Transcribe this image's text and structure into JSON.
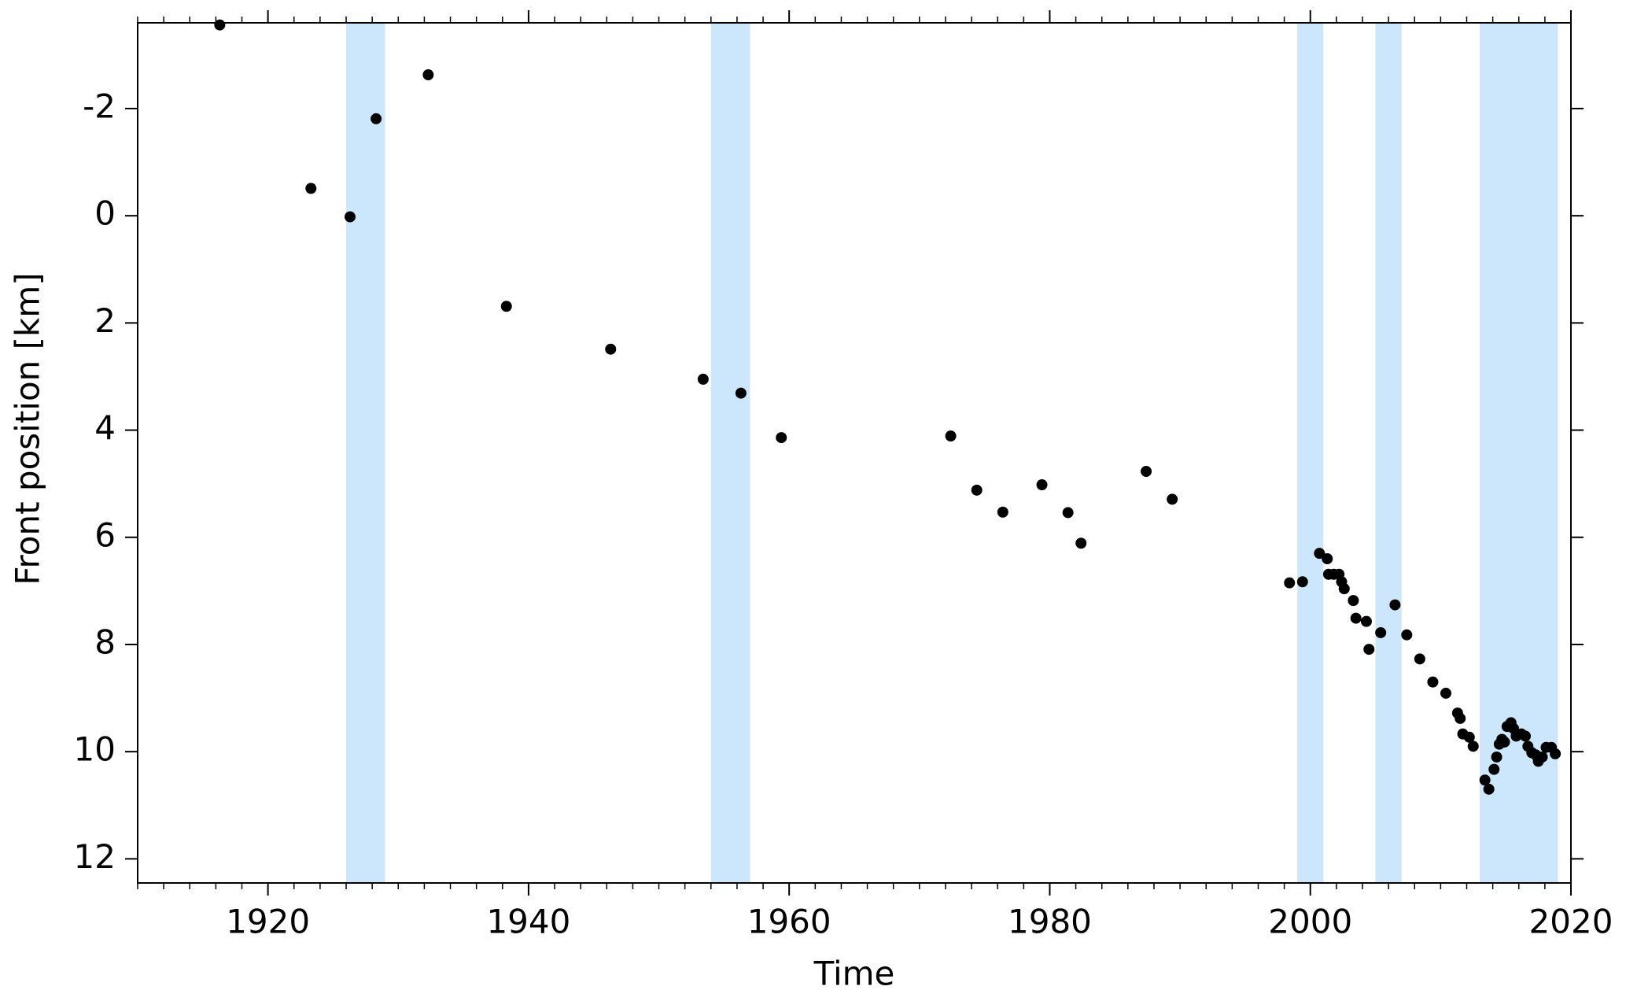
{
  "chart_data": {
    "type": "scatter",
    "xlabel": "Time",
    "ylabel": "Front position  [km]",
    "xlim": [
      1910,
      2020
    ],
    "xticks": [
      1920,
      1940,
      1960,
      1980,
      2000,
      2020
    ],
    "x_minor_step": 2,
    "ylim": [
      12.45,
      -3.6
    ],
    "yticks": [
      -2,
      0,
      2,
      4,
      6,
      8,
      10,
      12
    ],
    "color": "#000000",
    "band_color": "#cce6fb",
    "bands": [
      [
        1926,
        1929
      ],
      [
        1954,
        1957
      ],
      [
        1999,
        2001
      ],
      [
        2005,
        2007
      ],
      [
        2013,
        2019
      ]
    ],
    "x": [
      1916.3,
      1923.3,
      1926.3,
      1928.3,
      1932.3,
      1938.3,
      1946.3,
      1953.4,
      1956.3,
      1959.4,
      1972.4,
      1974.4,
      1976.4,
      1979.4,
      1981.4,
      1982.4,
      1987.4,
      1989.4,
      1998.4,
      1999.4,
      2000.7,
      2001.3,
      2001.4,
      2001.8,
      2002.2,
      2002.4,
      2002.6,
      2003.3,
      2003.5,
      2004.3,
      2004.5,
      2005.4,
      2006.5,
      2007.4,
      2008.4,
      2009.4,
      2010.4,
      2011.3,
      2011.5,
      2011.7,
      2012.2,
      2012.5,
      2013.4,
      2013.7,
      2014.1,
      2014.3,
      2014.5,
      2014.7,
      2014.9,
      2015.1,
      2015.4,
      2015.6,
      2015.8,
      2016.2,
      2016.5,
      2016.7,
      2017.0,
      2017.3,
      2017.5,
      2017.8,
      2018.1,
      2018.5,
      2018.8
    ],
    "values": [
      -3.56,
      -0.51,
      0.02,
      -1.81,
      -2.63,
      1.69,
      2.49,
      3.05,
      3.31,
      4.14,
      4.11,
      5.12,
      5.53,
      5.02,
      5.54,
      6.11,
      4.77,
      5.29,
      6.85,
      6.83,
      6.3,
      6.4,
      6.69,
      6.69,
      6.69,
      6.83,
      6.96,
      7.18,
      7.51,
      7.57,
      8.09,
      7.78,
      7.26,
      7.82,
      8.27,
      8.7,
      8.91,
      9.28,
      9.38,
      9.67,
      9.73,
      9.9,
      10.53,
      10.7,
      10.33,
      10.1,
      9.86,
      9.77,
      9.82,
      9.53,
      9.46,
      9.57,
      9.71,
      9.67,
      9.71,
      9.9,
      10.02,
      10.06,
      10.18,
      10.1,
      9.92,
      9.92,
      10.04
    ]
  }
}
